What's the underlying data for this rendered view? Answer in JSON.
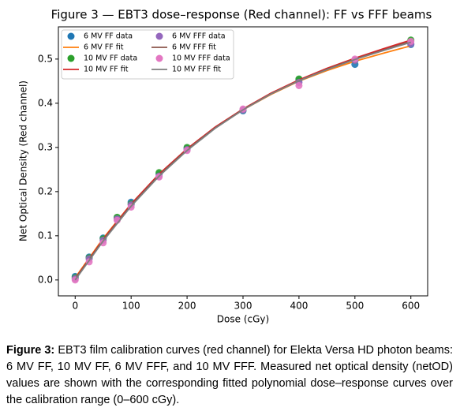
{
  "chart_data": {
    "type": "scatter",
    "title": "Figure 3 — EBT3 dose–response (Red channel): FF vs FFF beams",
    "x_label": "Dose (cGy)",
    "y_label": "Net Optical Density (Red channel)",
    "xlim": [
      -30,
      630
    ],
    "xticks": [
      0,
      100,
      200,
      300,
      400,
      500,
      600
    ],
    "ylim": [
      -0.036,
      0.573
    ],
    "yticks": [
      {
        "value": 0,
        "label": "0.0"
      },
      0.1,
      0.2,
      0.3,
      0.4,
      0.5
    ],
    "grid": false,
    "legend": "upper left",
    "series": [
      {
        "name": "6 MV FF data",
        "type": "scatter",
        "color": "#1f77b4",
        "x": [
          0,
          25,
          50,
          75,
          100,
          150,
          200,
          300,
          400,
          500,
          600
        ],
        "values": [
          0.008,
          0.052,
          0.095,
          0.14,
          0.176,
          0.24,
          0.298,
          0.383,
          0.453,
          0.488,
          0.533
        ]
      },
      {
        "name": "6 MV FF fit",
        "type": "line",
        "color": "#ff7f0e",
        "x": [
          0,
          50,
          100,
          150,
          200,
          250,
          300,
          350,
          400,
          450,
          500,
          550,
          600
        ],
        "values": [
          0.005,
          0.094,
          0.172,
          0.239,
          0.296,
          0.344,
          0.385,
          0.42,
          0.45,
          0.474,
          0.495,
          0.513,
          0.53
        ]
      },
      {
        "name": "10 MV FF data",
        "type": "scatter",
        "color": "#2ca02c",
        "x": [
          0,
          25,
          50,
          75,
          100,
          150,
          200,
          300,
          400,
          500,
          600
        ],
        "values": [
          0.005,
          0.05,
          0.093,
          0.142,
          0.172,
          0.243,
          0.3,
          0.385,
          0.455,
          0.497,
          0.543
        ]
      },
      {
        "name": "10 MV FF fit",
        "type": "line",
        "color": "#d62728",
        "x": [
          0,
          50,
          100,
          150,
          200,
          250,
          300,
          350,
          400,
          450,
          500,
          550,
          600
        ],
        "values": [
          0.003,
          0.092,
          0.172,
          0.24,
          0.297,
          0.346,
          0.387,
          0.423,
          0.453,
          0.479,
          0.502,
          0.523,
          0.543
        ]
      },
      {
        "name": "6 MV FFF data",
        "type": "scatter",
        "color": "#9467bd",
        "x": [
          0,
          25,
          50,
          75,
          100,
          150,
          200,
          300,
          400,
          500,
          600
        ],
        "values": [
          0.003,
          0.048,
          0.09,
          0.138,
          0.17,
          0.235,
          0.295,
          0.385,
          0.447,
          0.497,
          0.535
        ]
      },
      {
        "name": "6 MV FFF fit",
        "type": "line",
        "color": "#8c564b",
        "x": [
          0,
          50,
          100,
          150,
          200,
          250,
          300,
          350,
          400,
          450,
          500,
          550,
          600
        ],
        "values": [
          0.002,
          0.09,
          0.169,
          0.237,
          0.295,
          0.344,
          0.386,
          0.421,
          0.451,
          0.477,
          0.5,
          0.52,
          0.54
        ]
      },
      {
        "name": "10 MV FFF data",
        "type": "scatter",
        "color": "#e377c2",
        "x": [
          0,
          25,
          50,
          75,
          100,
          150,
          200,
          300,
          400,
          500,
          600
        ],
        "values": [
          0.0,
          0.041,
          0.084,
          0.135,
          0.165,
          0.233,
          0.293,
          0.387,
          0.44,
          0.5,
          0.54
        ]
      },
      {
        "name": "10 MV FFF fit",
        "type": "line",
        "color": "#7f7f7f",
        "x": [
          0,
          50,
          100,
          150,
          200,
          250,
          300,
          350,
          400,
          450,
          500,
          550,
          600
        ],
        "values": [
          0.0,
          0.088,
          0.167,
          0.235,
          0.293,
          0.343,
          0.385,
          0.421,
          0.451,
          0.476,
          0.499,
          0.519,
          0.538
        ]
      }
    ]
  },
  "caption": {
    "label": "Figure 3:",
    "text": "EBT3 film calibration curves (red channel) for Elekta Versa HD photon beams: 6 MV FF, 10 MV FF, 6 MV FFF, and 10 MV FFF. Measured net optical density (netOD) values are shown with the corresponding fitted polynomial dose–response curves over the calibration range (0–600 cGy)."
  }
}
